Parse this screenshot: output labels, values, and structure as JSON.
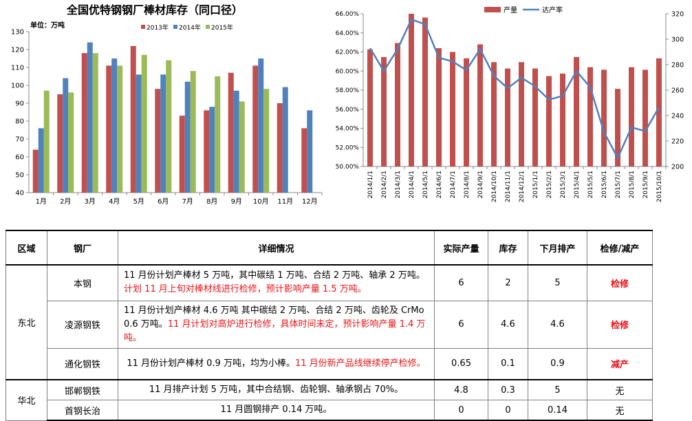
{
  "chart_data": [
    {
      "type": "bar",
      "title": "全国优特钢钢厂棒材库存（同口径）",
      "unit_label": "单位：万吨",
      "categories": [
        "1月",
        "2月",
        "3月",
        "4月",
        "5月",
        "6月",
        "7月",
        "8月",
        "9月",
        "10月",
        "11月",
        "12月"
      ],
      "series": [
        {
          "name": "2013年",
          "color": "#c0504d",
          "values": [
            64,
            95,
            118,
            111,
            122,
            98,
            83,
            86,
            107,
            111,
            90,
            76
          ]
        },
        {
          "name": "2014年",
          "color": "#4f81bd",
          "values": [
            76,
            104,
            124,
            115,
            106,
            106,
            102,
            88,
            97,
            115,
            99,
            86
          ]
        },
        {
          "name": "2015年",
          "color": "#9bbb59",
          "values": [
            97,
            96,
            118,
            111,
            117,
            114,
            108,
            105,
            91,
            98,
            null,
            null
          ]
        }
      ],
      "ylim": [
        40,
        130
      ],
      "yticks": [
        40,
        50,
        60,
        70,
        80,
        90,
        100,
        110,
        120,
        130
      ],
      "grid": false,
      "legend": "top"
    },
    {
      "type": "bar+line",
      "categories": [
        "2014/1/1",
        "2014/2/1",
        "2014/3/1",
        "2014/4/1",
        "2014/5/1",
        "2014/6/1",
        "2014/7/1",
        "2014/8/1",
        "2014/9/1",
        "2014/10/1",
        "2014/11/1",
        "2014/12/1",
        "2015/1/1",
        "2015/2/1",
        "2015/3/1",
        "2015/4/1",
        "2015/5/1",
        "2015/6/1",
        "2015/7/1",
        "2015/8/1",
        "2015/9/1",
        "2015/10/1"
      ],
      "series": [
        {
          "name": "产量",
          "type": "bar",
          "axis": "right",
          "color": "#c0504d",
          "values": [
            292,
            286,
            297,
            320,
            317,
            293,
            290,
            285,
            296,
            282,
            277,
            282,
            277,
            271,
            273,
            286,
            278,
            276,
            261,
            278,
            276,
            285
          ]
        },
        {
          "name": "达产率",
          "type": "line",
          "axis": "left",
          "color": "#4f81bd",
          "values": [
            62.4,
            60.0,
            62.3,
            65.4,
            64.9,
            61.4,
            61.0,
            60.1,
            62.3,
            59.5,
            58.2,
            59.3,
            58.4,
            57.0,
            57.4,
            60.0,
            58.3,
            53.6,
            50.9,
            54.1,
            53.7,
            56.2
          ]
        }
      ],
      "y_left": {
        "min": 0.5,
        "max": 0.66,
        "ticks": [
          "50.00%",
          "52.00%",
          "54.00%",
          "56.00%",
          "58.00%",
          "60.00%",
          "62.00%",
          "64.00%",
          "66.00%"
        ]
      },
      "y_right": {
        "min": 200,
        "max": 320,
        "ticks": [
          200,
          220,
          240,
          260,
          280,
          300,
          320
        ]
      },
      "grid": false,
      "legend": "top"
    }
  ],
  "table": {
    "headers": [
      "区域",
      "钢厂",
      "详细情况",
      "实际产量",
      "库存",
      "下月排产",
      "检修/减产"
    ],
    "regions": {
      "dongbei": "东北",
      "huabei": "华北"
    },
    "rows": [
      {
        "mill": "本钢",
        "detail_black": "11 月份计划产棒材 5 万吨，其中碳结 1 万吨、合结 2 万吨、轴承 2 万吨。",
        "detail_red": "计划 11 月上旬对棒材线进行检修，预计影响产量 1.5 万吨。",
        "output": "6",
        "stock": "2",
        "next": "5",
        "status": "检修"
      },
      {
        "mill": "凌源钢铁",
        "detail_black": "11 月份计划产棒材 4.6 万吨 其中碳结 2 万吨、合结 2 万吨、齿轮及 CrMo 0.6 万吨。",
        "detail_red": "11 月计划对高炉进行检修，具体时间未定，预计影响产量 1.4 万吨。",
        "output": "6",
        "stock": "4.6",
        "next": "4.6",
        "status": "检修"
      },
      {
        "mill": "通化钢铁",
        "detail_black": "11 月份计划产棒材 0.9 万吨，均为小棒。",
        "detail_red": "11 月份新产品线继续停产检修。",
        "output": "0.65",
        "stock": "0.1",
        "next": "0.9",
        "status": "减产"
      },
      {
        "mill": "邯郸钢铁",
        "detail_black": "11 月排产计划 5 万吨，其中合结钢、齿轮钢、轴承钢占 70%。",
        "detail_red": "",
        "output": "4.8",
        "stock": "0.3",
        "next": "5",
        "status": "无"
      },
      {
        "mill": "首钢长治",
        "detail_black": "11 月圆钢排产 0.14 万吨。",
        "detail_red": "",
        "output": "0",
        "stock": "0",
        "next": "0.14",
        "status": "无"
      }
    ]
  }
}
